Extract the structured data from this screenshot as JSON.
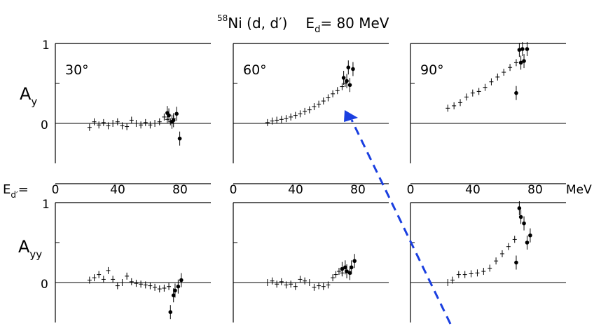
{
  "title": {
    "superscript": "58",
    "reaction": "Ni (d, d′)",
    "beam": "E",
    "beam_sub": "d",
    "beam_value": "= 80  MeV"
  },
  "row_labels": [
    {
      "main": "A",
      "sub": "y"
    },
    {
      "main": "A",
      "sub": "yy"
    }
  ],
  "x_axis": {
    "label_main": "E",
    "label_sub": "d′",
    "label_suffix": "=",
    "unit": "MeV",
    "ticks": [
      "0",
      "40",
      "80"
    ]
  },
  "y_ticks": [
    "0",
    "1"
  ],
  "overlay": {
    "type": "dashed-arrow",
    "color": "#1a3fe0"
  },
  "chart_data": [
    {
      "type": "scatter",
      "panel": "Ay-30",
      "angle_label": "30°",
      "observable": "Ay",
      "xlim": [
        0,
        100
      ],
      "ylim": [
        -0.5,
        1
      ],
      "points": [
        {
          "x": 22,
          "y": -0.05
        },
        {
          "x": 25,
          "y": 0.02
        },
        {
          "x": 28,
          "y": -0.02
        },
        {
          "x": 31,
          "y": 0.01
        },
        {
          "x": 34,
          "y": -0.03
        },
        {
          "x": 37,
          "y": 0.0
        },
        {
          "x": 40,
          "y": 0.02
        },
        {
          "x": 43,
          "y": -0.03
        },
        {
          "x": 46,
          "y": -0.04
        },
        {
          "x": 49,
          "y": 0.04
        },
        {
          "x": 52,
          "y": 0.0
        },
        {
          "x": 55,
          "y": -0.02
        },
        {
          "x": 58,
          "y": 0.01
        },
        {
          "x": 61,
          "y": -0.02
        },
        {
          "x": 64,
          "y": 0.0
        },
        {
          "x": 67,
          "y": 0.02
        },
        {
          "x": 70,
          "y": 0.08
        },
        {
          "x": 72,
          "y": 0.05
        },
        {
          "x": 74,
          "y": 0.02
        },
        {
          "x": 76,
          "y": 0.06
        }
      ],
      "filled_points": [
        {
          "x": 72,
          "y": 0.13
        },
        {
          "x": 73,
          "y": 0.1
        },
        {
          "x": 75,
          "y": 0.02
        },
        {
          "x": 76,
          "y": 0.04
        },
        {
          "x": 78,
          "y": 0.12
        },
        {
          "x": 80,
          "y": -0.19
        }
      ]
    },
    {
      "type": "scatter",
      "panel": "Ay-60",
      "angle_label": "60°",
      "observable": "Ay",
      "xlim": [
        0,
        100
      ],
      "ylim": [
        -0.5,
        1
      ],
      "points": [
        {
          "x": 22,
          "y": 0.01
        },
        {
          "x": 25,
          "y": 0.03
        },
        {
          "x": 28,
          "y": 0.04
        },
        {
          "x": 31,
          "y": 0.05
        },
        {
          "x": 34,
          "y": 0.06
        },
        {
          "x": 37,
          "y": 0.08
        },
        {
          "x": 40,
          "y": 0.1
        },
        {
          "x": 43,
          "y": 0.12
        },
        {
          "x": 46,
          "y": 0.15
        },
        {
          "x": 49,
          "y": 0.17
        },
        {
          "x": 52,
          "y": 0.21
        },
        {
          "x": 55,
          "y": 0.24
        },
        {
          "x": 58,
          "y": 0.28
        },
        {
          "x": 61,
          "y": 0.32
        },
        {
          "x": 64,
          "y": 0.37
        },
        {
          "x": 67,
          "y": 0.41
        },
        {
          "x": 70,
          "y": 0.46
        },
        {
          "x": 72,
          "y": 0.5
        }
      ],
      "filled_points": [
        {
          "x": 71,
          "y": 0.57
        },
        {
          "x": 73,
          "y": 0.53
        },
        {
          "x": 74,
          "y": 0.7
        },
        {
          "x": 75,
          "y": 0.48
        },
        {
          "x": 77,
          "y": 0.68
        }
      ]
    },
    {
      "type": "scatter",
      "panel": "Ay-90",
      "angle_label": "90°",
      "observable": "Ay",
      "xlim": [
        0,
        100
      ],
      "ylim": [
        -0.5,
        1
      ],
      "points": [
        {
          "x": 24,
          "y": 0.19
        },
        {
          "x": 28,
          "y": 0.22
        },
        {
          "x": 32,
          "y": 0.26
        },
        {
          "x": 36,
          "y": 0.33
        },
        {
          "x": 40,
          "y": 0.38
        },
        {
          "x": 44,
          "y": 0.4
        },
        {
          "x": 48,
          "y": 0.45
        },
        {
          "x": 52,
          "y": 0.52
        },
        {
          "x": 56,
          "y": 0.58
        },
        {
          "x": 60,
          "y": 0.64
        },
        {
          "x": 64,
          "y": 0.7
        },
        {
          "x": 68,
          "y": 0.76
        }
      ],
      "filled_points": [
        {
          "x": 68,
          "y": 0.38
        },
        {
          "x": 70,
          "y": 0.92
        },
        {
          "x": 71,
          "y": 0.76
        },
        {
          "x": 72,
          "y": 0.93
        },
        {
          "x": 73,
          "y": 0.78
        },
        {
          "x": 75,
          "y": 0.93
        }
      ]
    },
    {
      "type": "scatter",
      "panel": "Ayy-30",
      "angle_label": "",
      "observable": "Ayy",
      "xlim": [
        0,
        100
      ],
      "ylim": [
        -0.5,
        1
      ],
      "points": [
        {
          "x": 22,
          "y": 0.03
        },
        {
          "x": 25,
          "y": 0.06
        },
        {
          "x": 28,
          "y": 0.1
        },
        {
          "x": 31,
          "y": 0.04
        },
        {
          "x": 34,
          "y": 0.15
        },
        {
          "x": 37,
          "y": 0.04
        },
        {
          "x": 40,
          "y": -0.04
        },
        {
          "x": 43,
          "y": 0.0
        },
        {
          "x": 46,
          "y": 0.08
        },
        {
          "x": 49,
          "y": 0.01
        },
        {
          "x": 52,
          "y": -0.01
        },
        {
          "x": 55,
          "y": -0.02
        },
        {
          "x": 58,
          "y": -0.03
        },
        {
          "x": 61,
          "y": -0.04
        },
        {
          "x": 64,
          "y": -0.06
        },
        {
          "x": 67,
          "y": -0.08
        },
        {
          "x": 70,
          "y": -0.07
        },
        {
          "x": 73,
          "y": -0.05
        }
      ],
      "filled_points": [
        {
          "x": 74,
          "y": -0.37
        },
        {
          "x": 76,
          "y": -0.16
        },
        {
          "x": 77,
          "y": -0.1
        },
        {
          "x": 79,
          "y": -0.05
        },
        {
          "x": 81,
          "y": 0.03
        }
      ]
    },
    {
      "type": "scatter",
      "panel": "Ayy-60",
      "angle_label": "",
      "observable": "Ayy",
      "xlim": [
        0,
        100
      ],
      "ylim": [
        -0.5,
        1
      ],
      "points": [
        {
          "x": 22,
          "y": 0.0
        },
        {
          "x": 25,
          "y": 0.02
        },
        {
          "x": 28,
          "y": -0.02
        },
        {
          "x": 31,
          "y": 0.01
        },
        {
          "x": 34,
          "y": -0.03
        },
        {
          "x": 37,
          "y": -0.02
        },
        {
          "x": 40,
          "y": -0.05
        },
        {
          "x": 43,
          "y": 0.04
        },
        {
          "x": 46,
          "y": 0.02
        },
        {
          "x": 49,
          "y": 0.0
        },
        {
          "x": 52,
          "y": -0.06
        },
        {
          "x": 55,
          "y": -0.04
        },
        {
          "x": 58,
          "y": -0.05
        },
        {
          "x": 61,
          "y": -0.03
        },
        {
          "x": 64,
          "y": 0.06
        },
        {
          "x": 66,
          "y": 0.1
        },
        {
          "x": 68,
          "y": 0.14
        },
        {
          "x": 70,
          "y": 0.12
        }
      ],
      "filled_points": [
        {
          "x": 70,
          "y": 0.17
        },
        {
          "x": 72,
          "y": 0.19
        },
        {
          "x": 73,
          "y": 0.14
        },
        {
          "x": 75,
          "y": 0.12
        },
        {
          "x": 76,
          "y": 0.19
        },
        {
          "x": 78,
          "y": 0.27
        }
      ]
    },
    {
      "type": "scatter",
      "panel": "Ayy-90",
      "angle_label": "",
      "observable": "Ayy",
      "xlim": [
        0,
        100
      ],
      "ylim": [
        -0.5,
        1
      ],
      "points": [
        {
          "x": 24,
          "y": 0.0
        },
        {
          "x": 27,
          "y": 0.03
        },
        {
          "x": 31,
          "y": 0.1
        },
        {
          "x": 35,
          "y": 0.1
        },
        {
          "x": 39,
          "y": 0.11
        },
        {
          "x": 43,
          "y": 0.12
        },
        {
          "x": 47,
          "y": 0.14
        },
        {
          "x": 51,
          "y": 0.18
        },
        {
          "x": 55,
          "y": 0.27
        },
        {
          "x": 59,
          "y": 0.36
        },
        {
          "x": 63,
          "y": 0.45
        },
        {
          "x": 67,
          "y": 0.54
        }
      ],
      "filled_points": [
        {
          "x": 68,
          "y": 0.25
        },
        {
          "x": 70,
          "y": 0.93
        },
        {
          "x": 71,
          "y": 0.82
        },
        {
          "x": 73,
          "y": 0.74
        },
        {
          "x": 75,
          "y": 0.5
        },
        {
          "x": 77,
          "y": 0.59
        }
      ]
    }
  ]
}
